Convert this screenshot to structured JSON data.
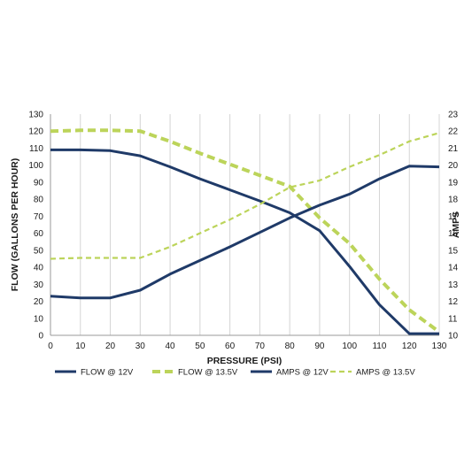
{
  "chart_data": {
    "type": "line",
    "xlabel": "PRESSURE (PSI)",
    "ylabel_left": "FLOW (GALLONS PER HOUR)",
    "ylabel_right": "AMPS",
    "x_ticks": [
      "0",
      "10",
      "20",
      "30",
      "40",
      "50",
      "60",
      "70",
      "80",
      "90",
      "100",
      "110",
      "120",
      "130"
    ],
    "y_left_ticks": [
      "0",
      "10",
      "20",
      "30",
      "40",
      "50",
      "60",
      "70",
      "80",
      "90",
      "100",
      "110",
      "120",
      "130"
    ],
    "y_right_ticks": [
      "10",
      "11",
      "12",
      "13",
      "14",
      "15",
      "16",
      "17",
      "18",
      "19",
      "20",
      "21",
      "22",
      "23"
    ],
    "xlim": [
      0,
      130
    ],
    "ylim_left": [
      0,
      130
    ],
    "ylim_right": [
      10,
      23
    ],
    "grid": "vertical",
    "legend_position": "bottom",
    "series": [
      {
        "name": "FLOW @ 12V",
        "axis": "left",
        "style": "solid",
        "color": "#1f3a68",
        "x": [
          0,
          10,
          20,
          30,
          40,
          50,
          60,
          70,
          80,
          90,
          100,
          110,
          120,
          130
        ],
        "values": [
          109,
          109,
          108.5,
          105.5,
          99,
          92,
          85.5,
          79,
          72,
          61.5,
          40.5,
          18,
          1,
          1
        ]
      },
      {
        "name": "FLOW @ 13.5V",
        "axis": "left",
        "style": "dashed",
        "color": "#bcd45a",
        "x": [
          0,
          10,
          20,
          30,
          40,
          50,
          60,
          70,
          80,
          90,
          100,
          110,
          120,
          130
        ],
        "values": [
          120,
          120.5,
          120.5,
          120,
          114,
          107,
          100.5,
          94,
          87.5,
          69,
          54,
          33,
          15,
          2
        ]
      },
      {
        "name": "AMPS @ 12V",
        "axis": "right",
        "style": "solid",
        "color": "#1f3a68",
        "x": [
          0,
          10,
          20,
          30,
          40,
          50,
          60,
          70,
          80,
          90,
          100,
          110,
          120,
          130
        ],
        "values": [
          12.3,
          12.2,
          12.2,
          12.65,
          13.6,
          14.4,
          15.2,
          16.05,
          16.9,
          17.65,
          18.3,
          19.2,
          19.95,
          19.9
        ]
      },
      {
        "name": "AMPS @ 13.5V",
        "axis": "right",
        "style": "thin-dashed",
        "color": "#bcd45a",
        "x": [
          0,
          10,
          20,
          30,
          40,
          50,
          60,
          70,
          80,
          90,
          100,
          110,
          120,
          130
        ],
        "values": [
          14.5,
          14.55,
          14.55,
          14.55,
          15.2,
          16.0,
          16.8,
          17.7,
          18.7,
          19.1,
          19.9,
          20.6,
          21.4,
          21.9
        ]
      }
    ]
  }
}
